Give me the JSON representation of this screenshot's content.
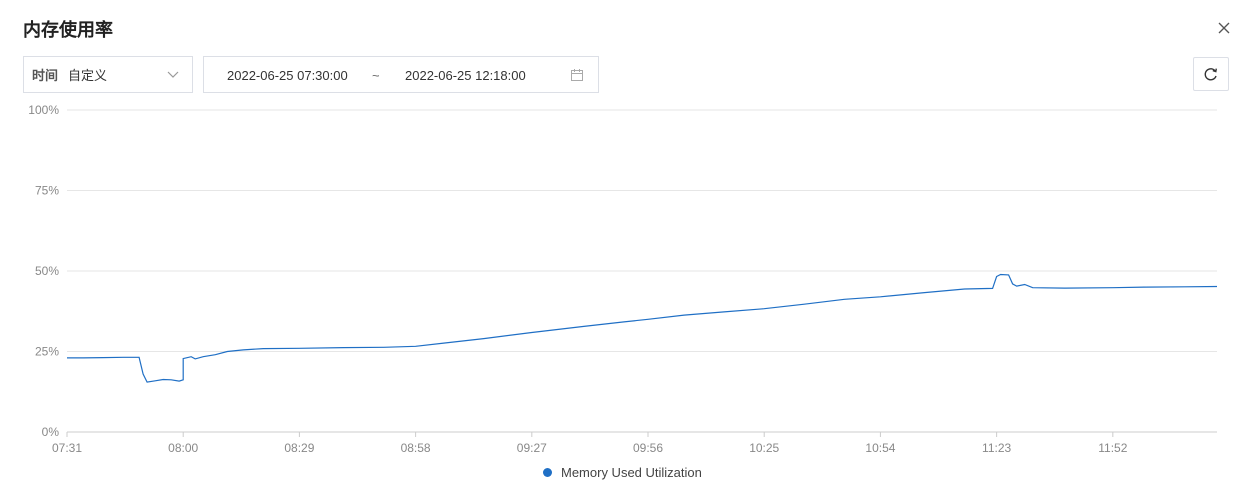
{
  "title": "内存使用率",
  "filter": {
    "time_label": "时间",
    "time_value": "自定义",
    "range_start": "2022-06-25 07:30:00",
    "range_separator": "~",
    "range_end": "2022-06-25 12:18:00"
  },
  "icons": {
    "close": "close-icon",
    "chevron": "chevron-down-icon",
    "calendar": "calendar-icon",
    "refresh": "refresh-icon"
  },
  "colors": {
    "series": "#1f6fc5",
    "grid": "#e6e6e6",
    "axis": "#cccccc"
  },
  "chart_data": {
    "type": "line",
    "title": "",
    "xlabel": "",
    "ylabel": "",
    "ylim": [
      0,
      100
    ],
    "y_ticks": [
      "0%",
      "25%",
      "50%",
      "75%",
      "100%"
    ],
    "x_ticks": [
      "07:31",
      "08:00",
      "08:29",
      "08:58",
      "09:27",
      "09:56",
      "10:25",
      "10:54",
      "11:23",
      "11:52"
    ],
    "x_range": [
      "07:31",
      "12:18"
    ],
    "grid": true,
    "legend": "bottom-center",
    "series": [
      {
        "name": "Memory Used Utilization",
        "points": [
          [
            "07:31",
            23.0
          ],
          [
            "07:35",
            23.0
          ],
          [
            "07:40",
            23.1
          ],
          [
            "07:45",
            23.2
          ],
          [
            "07:49",
            23.2
          ],
          [
            "07:50",
            18.0
          ],
          [
            "07:51",
            15.5
          ],
          [
            "07:53",
            15.9
          ],
          [
            "07:55",
            16.3
          ],
          [
            "07:57",
            16.2
          ],
          [
            "07:59",
            15.8
          ],
          [
            "08:00",
            16.2
          ],
          [
            "08:00",
            22.8
          ],
          [
            "08:02",
            23.4
          ],
          [
            "08:03",
            22.7
          ],
          [
            "08:05",
            23.4
          ],
          [
            "08:08",
            24.0
          ],
          [
            "08:11",
            25.0
          ],
          [
            "08:15",
            25.5
          ],
          [
            "08:20",
            25.9
          ],
          [
            "08:29",
            26.0
          ],
          [
            "08:40",
            26.2
          ],
          [
            "08:50",
            26.3
          ],
          [
            "08:58",
            26.6
          ],
          [
            "09:05",
            27.6
          ],
          [
            "09:15",
            29.0
          ],
          [
            "09:27",
            30.9
          ],
          [
            "09:40",
            32.8
          ],
          [
            "09:50",
            34.2
          ],
          [
            "09:56",
            35.0
          ],
          [
            "10:05",
            36.3
          ],
          [
            "10:15",
            37.3
          ],
          [
            "10:25",
            38.3
          ],
          [
            "10:35",
            39.7
          ],
          [
            "10:45",
            41.2
          ],
          [
            "10:54",
            42.0
          ],
          [
            "11:05",
            43.3
          ],
          [
            "11:15",
            44.4
          ],
          [
            "11:22",
            44.6
          ],
          [
            "11:23",
            48.3
          ],
          [
            "11:24",
            48.9
          ],
          [
            "11:26",
            48.8
          ],
          [
            "11:27",
            46.0
          ],
          [
            "11:28",
            45.3
          ],
          [
            "11:30",
            45.8
          ],
          [
            "11:32",
            44.8
          ],
          [
            "11:40",
            44.7
          ],
          [
            "11:52",
            44.8
          ],
          [
            "12:00",
            45.0
          ],
          [
            "12:10",
            45.1
          ],
          [
            "12:18",
            45.2
          ]
        ]
      }
    ]
  }
}
